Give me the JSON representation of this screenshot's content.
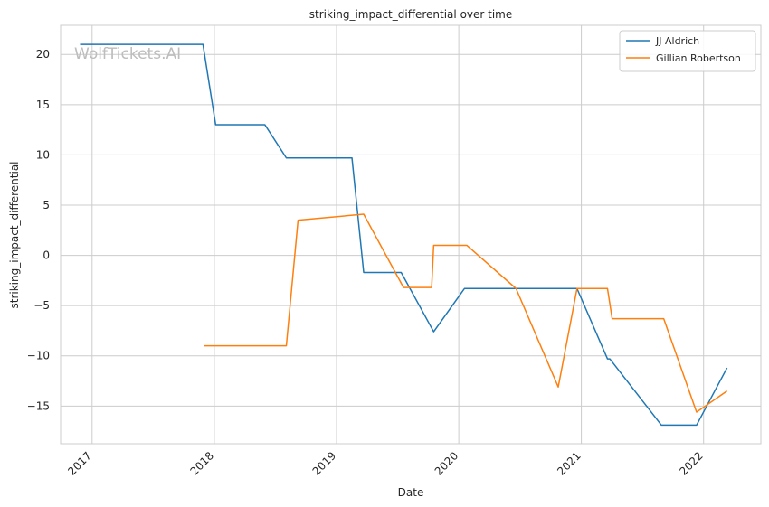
{
  "chart_data": {
    "type": "line",
    "title": "striking_impact_differential over time",
    "xlabel": "Date",
    "ylabel": "striking_impact_differential",
    "watermark": "WolfTickets.AI",
    "xlim": [
      "2016-09-29",
      "2022-06-21"
    ],
    "ylim": [
      -18.75,
      22.9
    ],
    "x_ticks": [
      "2017-01-01",
      "2018-01-01",
      "2019-01-01",
      "2020-01-01",
      "2021-01-01",
      "2022-01-01"
    ],
    "x_tick_labels": [
      "2017",
      "2018",
      "2019",
      "2020",
      "2021",
      "2022"
    ],
    "y_ticks": [
      20,
      15,
      10,
      5,
      0,
      -5,
      -10,
      -15
    ],
    "y_tick_labels": [
      "20",
      "15",
      "10",
      "5",
      "0",
      "−5",
      "−10",
      "−15"
    ],
    "grid": true,
    "legend_position": "top-right",
    "series": [
      {
        "name": "JJ Aldrich",
        "color": "#1f77b4",
        "points": [
          [
            "2016-11-26",
            21.0
          ],
          [
            "2017-11-28",
            21.0
          ],
          [
            "2018-01-05",
            13.0
          ],
          [
            "2018-06-01",
            13.0
          ],
          [
            "2018-08-04",
            9.7
          ],
          [
            "2019-02-16",
            9.7
          ],
          [
            "2019-03-23",
            -1.7
          ],
          [
            "2019-07-13",
            -1.7
          ],
          [
            "2019-10-18",
            -7.6
          ],
          [
            "2020-01-18",
            -3.3
          ],
          [
            "2020-12-19",
            -3.3
          ],
          [
            "2021-03-20",
            -10.3
          ],
          [
            "2021-03-27",
            -10.3
          ],
          [
            "2021-08-28",
            -16.9
          ],
          [
            "2021-12-11",
            -16.9
          ],
          [
            "2022-03-12",
            -11.2
          ]
        ]
      },
      {
        "name": "Gillian Robertson",
        "color": "#ff7f0e",
        "points": [
          [
            "2017-12-01",
            -9.0
          ],
          [
            "2018-08-04",
            -9.0
          ],
          [
            "2018-09-08",
            3.5
          ],
          [
            "2019-03-23",
            4.1
          ],
          [
            "2019-07-20",
            -3.2
          ],
          [
            "2019-10-12",
            -3.2
          ],
          [
            "2019-10-18",
            1.0
          ],
          [
            "2020-01-25",
            1.0
          ],
          [
            "2020-06-20",
            -3.3
          ],
          [
            "2020-10-24",
            -13.1
          ],
          [
            "2020-12-19",
            -3.3
          ],
          [
            "2021-03-20",
            -3.3
          ],
          [
            "2021-04-03",
            -6.3
          ],
          [
            "2021-09-04",
            -6.3
          ],
          [
            "2021-12-11",
            -15.6
          ],
          [
            "2022-03-12",
            -13.5
          ]
        ]
      }
    ]
  }
}
